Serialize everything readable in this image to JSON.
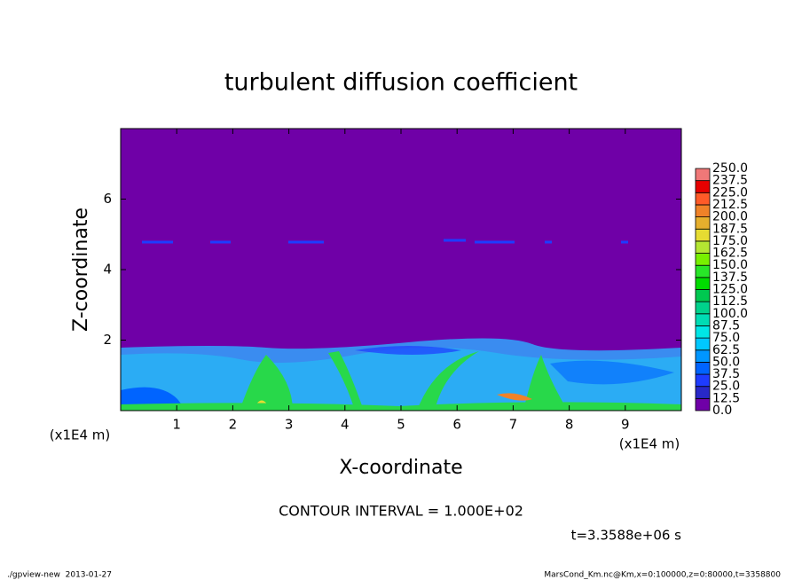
{
  "chart_data": {
    "type": "contour",
    "title": "turbulent diffusion coefficient",
    "x_label": "X-coordinate",
    "y_label": "Z-coordinate",
    "x_unit": "(x1E4 m)",
    "y_unit": "(x1E4 m)",
    "xlim": [
      0,
      10
    ],
    "ylim": [
      0,
      8
    ],
    "xticks": [
      1,
      2,
      3,
      4,
      5,
      6,
      7,
      8,
      9
    ],
    "yticks": [
      2,
      4,
      6
    ],
    "levels": [
      {
        "value": 0,
        "label": "0.0"
      },
      12.5,
      {
        "value": 25,
        "label": "25.0"
      },
      37.5,
      {
        "value": 50,
        "label": "50.0"
      },
      62.5,
      {
        "value": 75,
        "label": "75.0"
      },
      87.5,
      {
        "value": 100,
        "label": "100.0"
      },
      112.5,
      {
        "value": 125,
        "label": "125.0"
      },
      137.5,
      {
        "value": 150,
        "label": "150.0"
      },
      162.5,
      {
        "value": 175,
        "label": "175.0"
      },
      187.5,
      {
        "value": 200,
        "label": "200.0"
      },
      212.5,
      {
        "value": 225,
        "label": "225.0"
      },
      237.5,
      {
        "value": 250,
        "label": "250.0"
      }
    ],
    "level_colors": [
      "#6f00a7",
      "#2828c8",
      "#1e3cff",
      "#0064ff",
      "#0096ff",
      "#00c8ff",
      "#00e6e6",
      "#00dcb4",
      "#00d28c",
      "#00c850",
      "#00dc00",
      "#28e628",
      "#78f000",
      "#b4e632",
      "#e6dc32",
      "#e6af2d",
      "#f08228",
      "#ff5a28",
      "#e60000",
      "#f07878"
    ],
    "contour_interval": "CONTOUR INTERVAL = 1.000E+02",
    "time_label": "t=3.3588e+06 s",
    "footer_left": "./gpview-new  2013-01-27",
    "footer_right": "MarsCond_Km.nc@Km,x=0:100000,z=0:80000,t=3358800"
  }
}
